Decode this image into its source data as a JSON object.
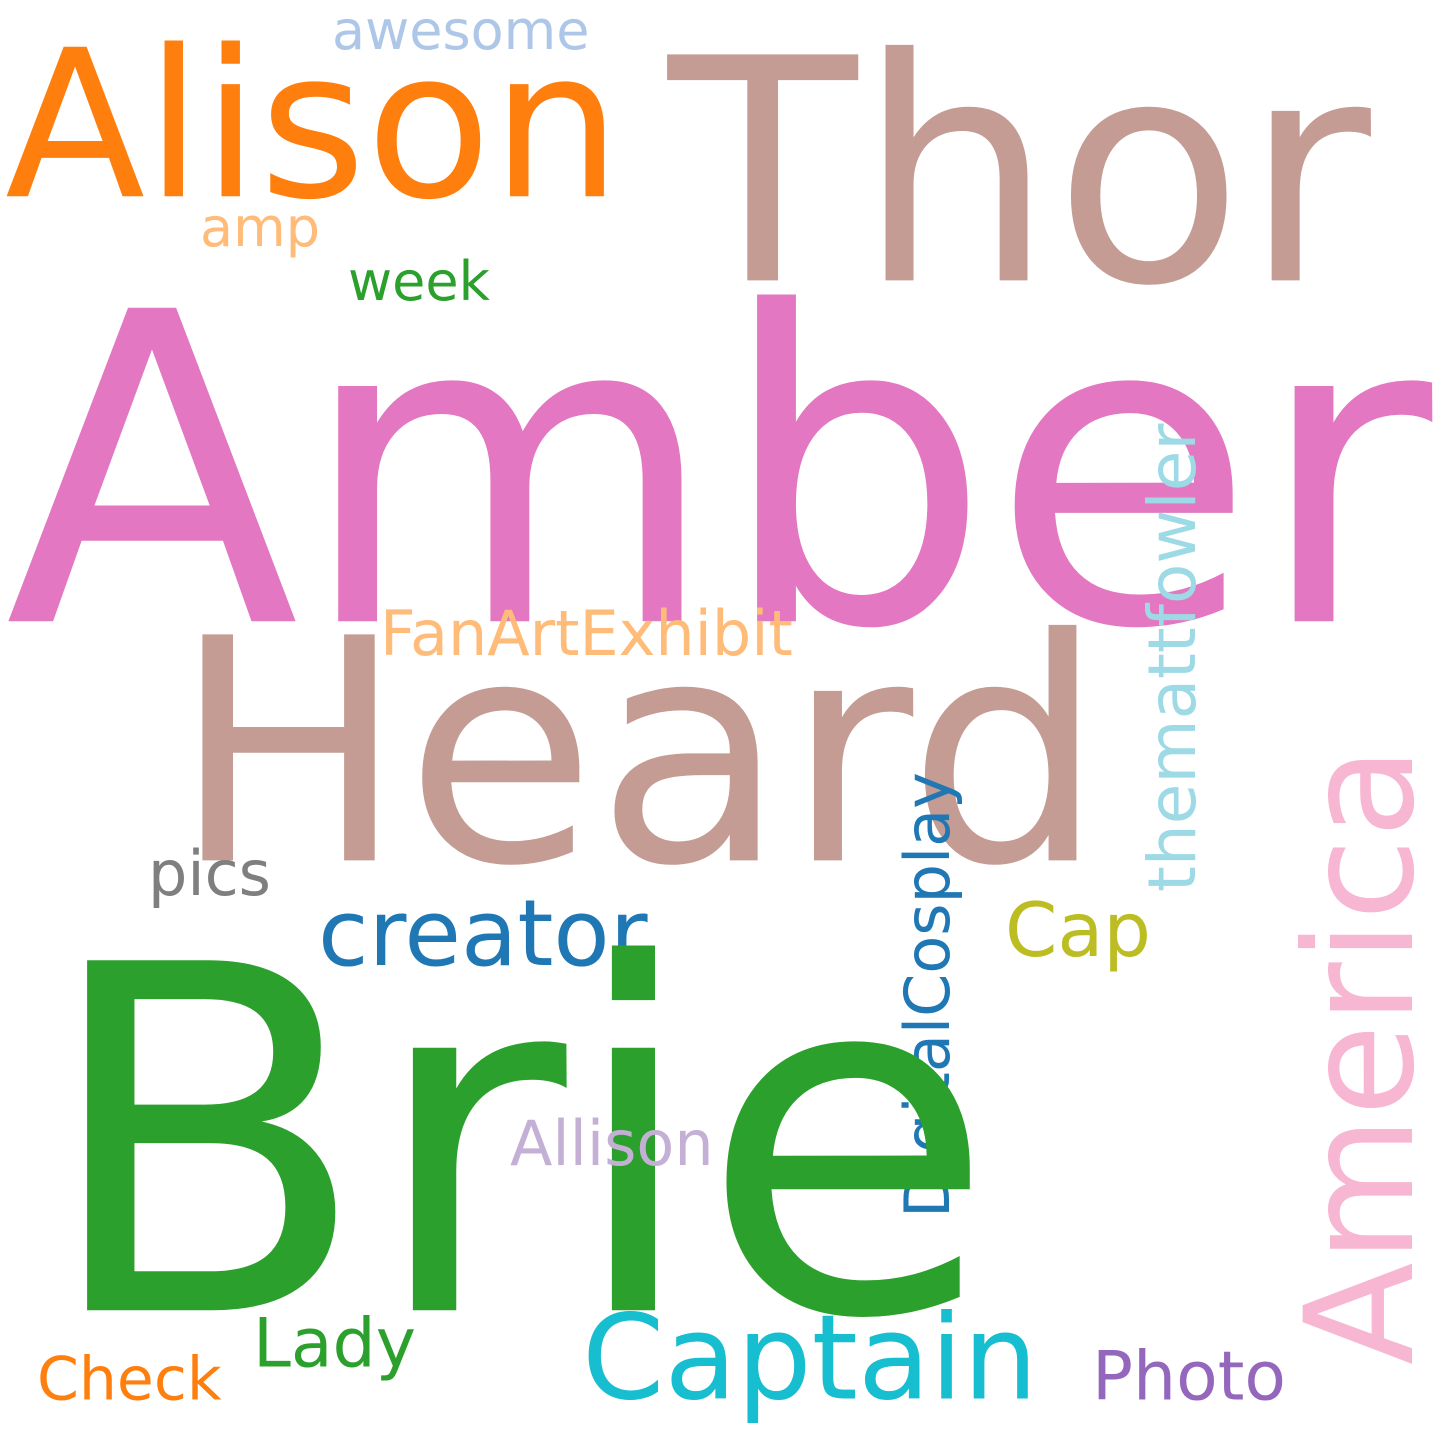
{
  "words": {
    "amber": {
      "text": "Amber",
      "color": "#e377c2"
    },
    "brie": {
      "text": "Brie",
      "color": "#2ca02c"
    },
    "thor": {
      "text": "Thor",
      "color": "#c49c94"
    },
    "heard": {
      "text": "Heard",
      "color": "#c49c94"
    },
    "alison": {
      "text": "Alison",
      "color": "#ff7f0e"
    },
    "america": {
      "text": "America",
      "color": "#f7b6d2"
    },
    "captain": {
      "text": "Captain",
      "color": "#17becf"
    },
    "creator": {
      "text": "creator",
      "color": "#1f77b4"
    },
    "themattfowler": {
      "text": "themattfowler",
      "color": "#9edae5"
    },
    "digital": {
      "text": "DigitalCosplay",
      "color": "#1f77b4"
    },
    "fanart": {
      "text": "FanArtExhibit",
      "color": "#ffbb78"
    },
    "cap": {
      "text": "Cap",
      "color": "#bcbd22"
    },
    "allison": {
      "text": "Allison",
      "color": "#c5b0d5"
    },
    "lady": {
      "text": "Lady",
      "color": "#2ca02c"
    },
    "photo": {
      "text": "Photo",
      "color": "#9467bd"
    },
    "check": {
      "text": "Check",
      "color": "#ff7f0e"
    },
    "pics": {
      "text": "pics",
      "color": "#7f7f7f"
    },
    "week": {
      "text": "week",
      "color": "#2ca02c"
    },
    "amp": {
      "text": "amp",
      "color": "#ffbb78"
    },
    "awesome": {
      "text": "awesome",
      "color": "#aec7e8"
    }
  },
  "vertical": [
    "america",
    "themattfowler",
    "digital"
  ]
}
